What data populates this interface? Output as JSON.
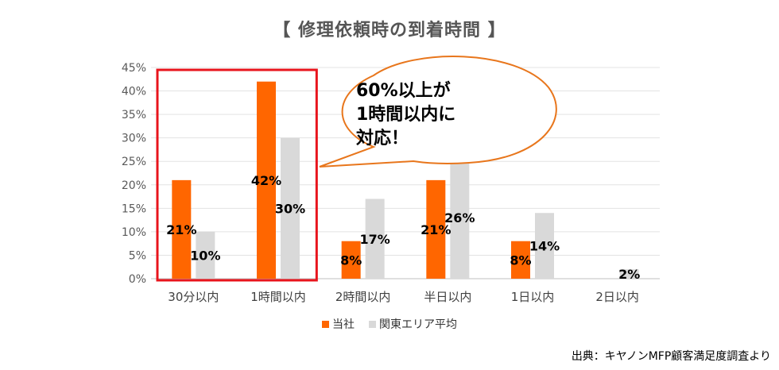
{
  "title": "【 修理依頼時の到着時間 】",
  "source": "出典：キヤノンMFP顧客満足度調査より",
  "callout": {
    "lines": [
      "60%以上が",
      "1時間以内に",
      "対応！"
    ]
  },
  "colors": {
    "series1": "#ff6600",
    "series2": "#d9d9d9",
    "highlight": "#e8141c",
    "bubble_border": "#e8761c",
    "axis_text": "#595959"
  },
  "chart_data": {
    "type": "bar",
    "title": "【 修理依頼時の到着時間 】",
    "categories": [
      "30分以内",
      "1時間以内",
      "2時間以内",
      "半日以内",
      "1日以内",
      "2日以内"
    ],
    "series": [
      {
        "name": "当社",
        "values": [
          21,
          42,
          8,
          21,
          8,
          0
        ]
      },
      {
        "name": "関東エリア平均",
        "values": [
          10,
          30,
          17,
          26,
          14,
          2
        ]
      }
    ],
    "data_labels": [
      [
        "21%",
        "42%",
        "8%",
        "21%",
        "8%",
        ""
      ],
      [
        "10%",
        "30%",
        "17%",
        "26%",
        "14%",
        "2%"
      ]
    ],
    "ylim": [
      0,
      45
    ],
    "yticks": [
      "0%",
      "5%",
      "10%",
      "15%",
      "20%",
      "25%",
      "30%",
      "35%",
      "40%",
      "45%"
    ],
    "grid": true,
    "legend": "bottom",
    "highlight_categories": [
      "30分以内",
      "1時間以内"
    ]
  }
}
